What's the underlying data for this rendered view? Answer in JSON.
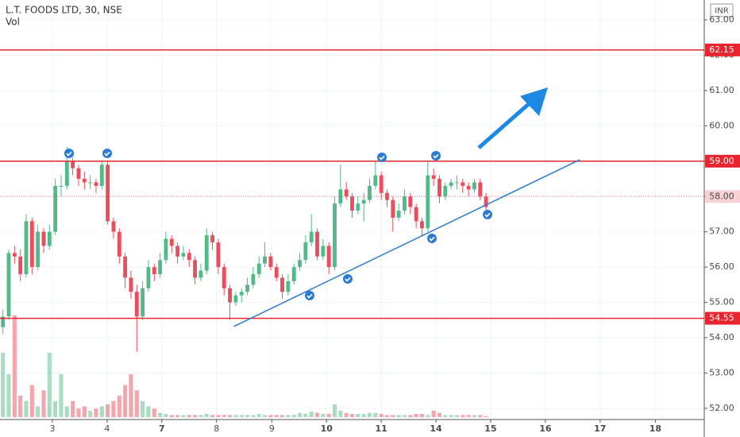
{
  "chart_data": {
    "type": "candlestick",
    "title": "L.T. FOODS LTD, 30, NSE",
    "subtitle": "Vol",
    "currency": "INR",
    "up_color": "#53b987",
    "down_color": "#eb4d5c",
    "trend_color": "#2b7bd1",
    "line_color": "#e8242f",
    "xlim": [
      -0.5,
      120.5
    ],
    "xticks": [
      {
        "value": 8.5,
        "label": "3"
      },
      {
        "value": 17.9,
        "label": "4"
      },
      {
        "value": 27.3,
        "label": "7"
      },
      {
        "value": 36.7,
        "label": "8"
      },
      {
        "value": 46.2,
        "label": "9"
      },
      {
        "value": 55.6,
        "label": "10"
      },
      {
        "value": 65,
        "label": "11"
      },
      {
        "value": 74.4,
        "label": "14"
      },
      {
        "value": 83.8,
        "label": "15"
      },
      {
        "value": 93.2,
        "label": "16"
      },
      {
        "value": 102.6,
        "label": "17"
      },
      {
        "value": 112.1,
        "label": "18"
      }
    ],
    "ylim": [
      51.75,
      63.43
    ],
    "yticks": [
      {
        "value": 63,
        "label": "63.00"
      },
      {
        "value": 62,
        "label": "62.00"
      },
      {
        "value": 61,
        "label": "61.00"
      },
      {
        "value": 60,
        "label": "60.00"
      },
      {
        "value": 59,
        "label": "59.00"
      },
      {
        "value": 58,
        "label": "58.00"
      },
      {
        "value": 57,
        "label": "57.00"
      },
      {
        "value": 56,
        "label": "56.00"
      },
      {
        "value": 55,
        "label": "55.00"
      },
      {
        "value": 54,
        "label": "54.00"
      },
      {
        "value": 53,
        "label": "53.00"
      },
      {
        "value": 52,
        "label": "52.00"
      }
    ],
    "hlines": [
      {
        "value": 62.15,
        "label": "62.15"
      },
      {
        "value": 59,
        "label": "59.00"
      },
      {
        "value": 54.55,
        "label": "54.55"
      }
    ],
    "price_line": {
      "value": 58,
      "label": "58.00"
    },
    "trendline": [
      [
        39.7,
        54.32
      ],
      [
        99.1,
        59.04
      ]
    ],
    "vlim": [
      0,
      100
    ],
    "ohlc": [
      [
        54.3,
        54.8,
        54.1,
        54.6
      ],
      [
        54.6,
        56.5,
        54.5,
        56.4
      ],
      [
        56.4,
        56.6,
        56.1,
        56.3
      ],
      [
        56.3,
        56.5,
        55.6,
        55.8
      ],
      [
        55.8,
        57.5,
        55.7,
        57.3
      ],
      [
        57.3,
        57.4,
        55.8,
        56.0
      ],
      [
        56.0,
        57.2,
        55.9,
        57.0
      ],
      [
        57.0,
        57.1,
        56.4,
        56.6
      ],
      [
        56.6,
        57.2,
        56.5,
        57.0
      ],
      [
        57.0,
        58.5,
        56.9,
        58.3
      ],
      [
        58.3,
        58.6,
        58.0,
        58.3
      ],
      [
        58.3,
        59.4,
        58.2,
        59.0
      ],
      [
        59.0,
        59.1,
        58.6,
        58.8
      ],
      [
        58.8,
        58.9,
        58.3,
        58.5
      ],
      [
        58.5,
        58.7,
        58.2,
        58.4
      ],
      [
        58.4,
        58.6,
        58.2,
        58.4
      ],
      [
        58.4,
        58.5,
        58.1,
        58.3
      ],
      [
        58.3,
        59.0,
        58.2,
        58.9
      ],
      [
        58.9,
        59.0,
        57.2,
        57.3
      ],
      [
        57.3,
        57.4,
        56.8,
        57.0
      ],
      [
        57.0,
        57.1,
        56.1,
        56.3
      ],
      [
        56.3,
        56.4,
        55.4,
        55.7
      ],
      [
        55.7,
        55.9,
        55.1,
        55.3
      ],
      [
        55.3,
        55.5,
        53.6,
        54.6
      ],
      [
        54.6,
        55.6,
        54.5,
        55.4
      ],
      [
        55.4,
        56.2,
        55.3,
        56.0
      ],
      [
        56.0,
        56.1,
        55.6,
        55.8
      ],
      [
        55.8,
        56.4,
        55.7,
        56.2
      ],
      [
        56.2,
        57.0,
        56.1,
        56.8
      ],
      [
        56.8,
        56.9,
        56.4,
        56.6
      ],
      [
        56.6,
        56.7,
        56.1,
        56.3
      ],
      [
        56.3,
        56.6,
        56.2,
        56.4
      ],
      [
        56.4,
        56.5,
        56.0,
        56.2
      ],
      [
        56.2,
        56.3,
        55.5,
        55.7
      ],
      [
        55.7,
        56.1,
        55.6,
        55.9
      ],
      [
        55.9,
        57.1,
        55.8,
        56.9
      ],
      [
        56.9,
        57.0,
        56.5,
        56.7
      ],
      [
        56.7,
        56.8,
        55.8,
        56.0
      ],
      [
        56.0,
        56.1,
        55.2,
        55.4
      ],
      [
        55.4,
        55.5,
        54.5,
        55.0
      ],
      [
        55.0,
        55.3,
        54.9,
        55.2
      ],
      [
        55.2,
        55.4,
        55.0,
        55.3
      ],
      [
        55.3,
        55.7,
        55.2,
        55.5
      ],
      [
        55.5,
        56.0,
        55.4,
        55.8
      ],
      [
        55.8,
        56.3,
        55.7,
        56.1
      ],
      [
        56.1,
        56.7,
        56.0,
        56.3
      ],
      [
        56.3,
        56.4,
        55.9,
        56.0
      ],
      [
        56.0,
        56.1,
        55.6,
        55.7
      ],
      [
        55.7,
        55.8,
        55.1,
        55.3
      ],
      [
        55.3,
        55.8,
        55.2,
        55.6
      ],
      [
        55.6,
        56.1,
        55.5,
        56.0
      ],
      [
        56.0,
        56.4,
        55.9,
        56.2
      ],
      [
        56.2,
        56.9,
        56.1,
        56.7
      ],
      [
        56.7,
        57.5,
        56.6,
        57.0
      ],
      [
        57.0,
        57.1,
        56.2,
        56.3
      ],
      [
        56.3,
        56.8,
        56.2,
        56.6
      ],
      [
        56.6,
        56.7,
        55.8,
        56.0
      ],
      [
        56.0,
        58.0,
        55.9,
        57.8
      ],
      [
        57.8,
        58.9,
        57.7,
        58.2
      ],
      [
        58.2,
        58.4,
        57.9,
        58.0
      ],
      [
        58.0,
        58.1,
        57.4,
        57.6
      ],
      [
        57.6,
        58.0,
        57.5,
        57.8
      ],
      [
        57.8,
        58.1,
        57.3,
        57.9
      ],
      [
        57.9,
        58.5,
        57.8,
        58.3
      ],
      [
        58.3,
        59.0,
        58.2,
        58.6
      ],
      [
        58.6,
        58.7,
        57.9,
        58.1
      ],
      [
        58.1,
        58.2,
        57.7,
        57.9
      ],
      [
        57.9,
        58.0,
        57.0,
        57.4
      ],
      [
        57.4,
        57.8,
        57.3,
        57.6
      ],
      [
        57.6,
        58.2,
        57.5,
        58.0
      ],
      [
        58.0,
        58.1,
        57.5,
        57.7
      ],
      [
        57.7,
        57.8,
        57.1,
        57.3
      ],
      [
        57.3,
        57.4,
        56.9,
        57.1
      ],
      [
        57.1,
        59.0,
        57.0,
        58.6
      ],
      [
        58.6,
        58.8,
        58.3,
        58.5
      ],
      [
        58.5,
        58.6,
        57.8,
        58.0
      ],
      [
        58.0,
        58.4,
        57.9,
        58.3
      ],
      [
        58.3,
        58.5,
        58.2,
        58.4
      ],
      [
        58.4,
        58.6,
        58.2,
        58.4
      ],
      [
        58.4,
        58.5,
        58.1,
        58.3
      ],
      [
        58.3,
        58.4,
        58.0,
        58.2
      ],
      [
        58.2,
        58.5,
        58.1,
        58.4
      ],
      [
        58.4,
        58.5,
        57.9,
        58.0
      ],
      [
        58.0,
        58.1,
        57.6,
        57.7
      ]
    ],
    "volume": [
      60,
      40,
      95,
      20,
      15,
      30,
      10,
      25,
      60,
      15,
      40,
      10,
      15,
      8,
      10,
      6,
      8,
      10,
      12,
      15,
      20,
      30,
      40,
      25,
      15,
      10,
      8,
      4,
      3,
      2,
      2,
      2,
      2,
      2,
      2,
      3,
      2,
      2,
      2,
      2,
      2,
      2,
      2,
      2,
      3,
      2,
      2,
      2,
      2,
      2,
      2,
      4,
      3,
      5,
      4,
      3,
      3,
      12,
      6,
      4,
      3,
      3,
      3,
      4,
      4,
      3,
      2,
      2,
      2,
      2,
      2,
      3,
      3,
      2,
      6,
      4,
      2,
      2,
      2,
      2,
      2,
      2,
      2,
      1
    ]
  }
}
